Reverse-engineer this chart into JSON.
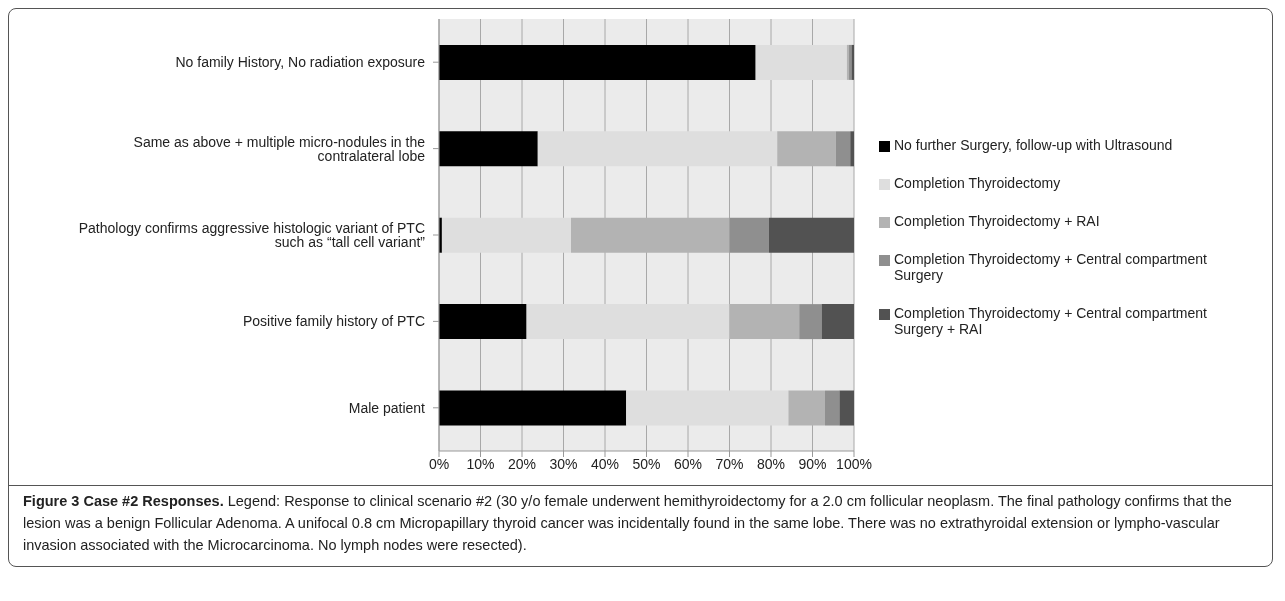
{
  "chart_data": {
    "type": "bar",
    "orientation": "horizontal",
    "stacked": true,
    "title": "Figure 3 Case #2 Responses.",
    "annotations": [
      "Legend: Response to clinical scenario #2 (30 y/o female underwent hemithyroidectomy for a 2.0 cm follicular neoplasm. The final pathology confirms that the lesion was a benign Follicular Adenoma. A unifocal 0.8 cm Micropapillary thyroid cancer was incidentally found in the same lobe. There was no extrathyroidal extension or lympho-vascular invasion associated with the Microcarcinoma. No lymph nodes were resected)."
    ],
    "categories": [
      "No family History, No radiation exposure",
      "Same as above + multiple micro-nodules in the contralateral lobe",
      "Pathology confirms aggressive histologic variant of PTC such as “tall cell variant”",
      "Positive family history of PTC",
      "Male patient"
    ],
    "series": [
      {
        "name": "No further Surgery, follow-up with Ultrasound",
        "color": "#000000",
        "values": [
          76.3,
          23.8,
          0.7,
          21.1,
          45.1
        ]
      },
      {
        "name": "Completion Thyroidectomy",
        "color": "#dedede",
        "values": [
          22.0,
          57.7,
          31.1,
          48.9,
          39.1
        ]
      },
      {
        "name": "Completion Thyroidectomy + RAI",
        "color": "#b3b3b3",
        "values": [
          0.5,
          14.1,
          38.2,
          16.8,
          8.8
        ]
      },
      {
        "name": "Completion Thyroidectomy + Central compartment Surgery",
        "color": "#8f8f8f",
        "values": [
          0.6,
          3.5,
          9.5,
          5.4,
          3.5
        ]
      },
      {
        "name": "Completion Thyroidectomy + Central compartment Surgery + RAI",
        "color": "#525252",
        "values": [
          0.6,
          0.9,
          20.5,
          7.8,
          3.5
        ]
      }
    ],
    "xlim": [
      0,
      100
    ],
    "xticks": [
      {
        "value": 0,
        "label": "0%"
      },
      {
        "value": 10,
        "label": "10%"
      },
      {
        "value": 20,
        "label": "20%"
      },
      {
        "value": 30,
        "label": "30%"
      },
      {
        "value": 40,
        "label": "40%"
      },
      {
        "value": 50,
        "label": "50%"
      },
      {
        "value": 60,
        "label": "60%"
      },
      {
        "value": 70,
        "label": "70%"
      },
      {
        "value": 80,
        "label": "80%"
      },
      {
        "value": 90,
        "label": "90%"
      },
      {
        "value": 100,
        "label": "100%"
      }
    ],
    "grid": "x",
    "legend": "right"
  }
}
